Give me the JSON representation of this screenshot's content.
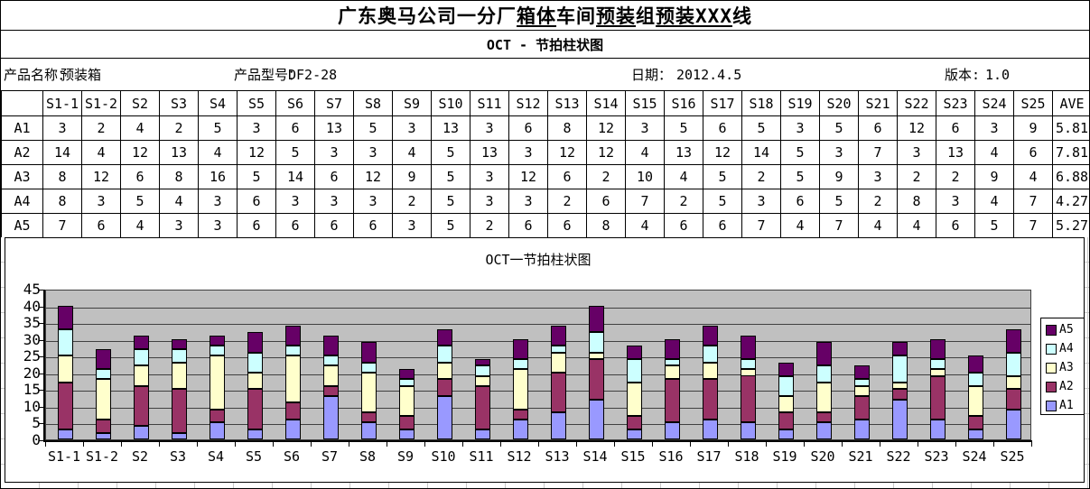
{
  "sheet": {
    "title_parts": [
      {
        "text": "广东奥马公司一分厂",
        "underline": false
      },
      {
        "text": "箱体",
        "underline": true
      },
      {
        "text": "车间",
        "underline": false
      },
      {
        "text": "预装",
        "underline": true
      },
      {
        "text": "组",
        "underline": false
      },
      {
        "text": "预装XXX",
        "underline": true
      },
      {
        "text": "线",
        "underline": false
      }
    ],
    "subtitle": "OCT - 节拍柱状图",
    "info": {
      "product_name_label": "产品名称：",
      "product_name_value": "预装箱",
      "product_model_label": "产品型号：",
      "product_model_value": "DF2-28",
      "date_label": "日期：",
      "date_value": "2012.4.5",
      "version_label": "版本:",
      "version_value": "1.0"
    }
  },
  "table": {
    "columns": [
      "",
      "S1-1",
      "S1-2",
      "S2",
      "S3",
      "S4",
      "S5",
      "S6",
      "S7",
      "S8",
      "S9",
      "S10",
      "S11",
      "S12",
      "S13",
      "S14",
      "S15",
      "S16",
      "S17",
      "S18",
      "S19",
      "S20",
      "S21",
      "S22",
      "S23",
      "S24",
      "S25",
      "AVE"
    ],
    "rows": [
      {
        "label": "A1",
        "values": [
          3,
          2,
          4,
          2,
          5,
          3,
          6,
          13,
          5,
          3,
          13,
          3,
          6,
          8,
          12,
          3,
          5,
          6,
          5,
          3,
          5,
          6,
          12,
          6,
          3,
          9
        ],
        "ave": "5.81"
      },
      {
        "label": "A2",
        "values": [
          14,
          4,
          12,
          13,
          4,
          12,
          5,
          3,
          3,
          4,
          5,
          13,
          3,
          12,
          12,
          4,
          13,
          12,
          14,
          5,
          3,
          7,
          3,
          13,
          4,
          6
        ],
        "ave": "7.81"
      },
      {
        "label": "A3",
        "values": [
          8,
          12,
          6,
          8,
          16,
          5,
          14,
          6,
          12,
          9,
          5,
          3,
          12,
          6,
          2,
          10,
          4,
          5,
          2,
          5,
          9,
          3,
          2,
          2,
          9,
          4
        ],
        "ave": "6.88"
      },
      {
        "label": "A4",
        "values": [
          8,
          3,
          5,
          4,
          3,
          6,
          3,
          3,
          3,
          2,
          5,
          3,
          3,
          2,
          6,
          7,
          2,
          5,
          3,
          6,
          5,
          2,
          8,
          3,
          4,
          7
        ],
        "ave": "4.27"
      },
      {
        "label": "A5",
        "values": [
          7,
          6,
          4,
          3,
          3,
          6,
          6,
          6,
          6,
          3,
          5,
          2,
          6,
          6,
          8,
          4,
          6,
          6,
          7,
          4,
          7,
          4,
          4,
          6,
          5,
          7
        ],
        "ave": "5.27"
      }
    ]
  },
  "chart_data": {
    "type": "bar",
    "stacked": true,
    "title": "OCT一节拍柱状图",
    "categories": [
      "S1-1",
      "S1-2",
      "S2",
      "S3",
      "S4",
      "S5",
      "S6",
      "S7",
      "S8",
      "S9",
      "S10",
      "S11",
      "S12",
      "S13",
      "S14",
      "S15",
      "S16",
      "S17",
      "S18",
      "S19",
      "S20",
      "S21",
      "S22",
      "S23",
      "S24",
      "S25"
    ],
    "series": [
      {
        "name": "A1",
        "color": "#9999FF",
        "values": [
          3,
          2,
          4,
          2,
          5,
          3,
          6,
          13,
          5,
          3,
          13,
          3,
          6,
          8,
          12,
          3,
          5,
          6,
          5,
          3,
          5,
          6,
          12,
          6,
          3,
          9
        ]
      },
      {
        "name": "A2",
        "color": "#993366",
        "values": [
          14,
          4,
          12,
          13,
          4,
          12,
          5,
          3,
          3,
          4,
          5,
          13,
          3,
          12,
          12,
          4,
          13,
          12,
          14,
          5,
          3,
          7,
          3,
          13,
          4,
          6
        ]
      },
      {
        "name": "A3",
        "color": "#FFFFCC",
        "values": [
          8,
          12,
          6,
          8,
          16,
          5,
          14,
          6,
          12,
          9,
          5,
          3,
          12,
          6,
          2,
          10,
          4,
          5,
          2,
          5,
          9,
          3,
          2,
          2,
          9,
          4
        ]
      },
      {
        "name": "A4",
        "color": "#CCFFFF",
        "values": [
          8,
          3,
          5,
          4,
          3,
          6,
          3,
          3,
          3,
          2,
          5,
          3,
          3,
          2,
          6,
          7,
          2,
          5,
          3,
          6,
          5,
          2,
          8,
          3,
          4,
          7
        ]
      },
      {
        "name": "A5",
        "color": "#660066",
        "values": [
          7,
          6,
          4,
          3,
          3,
          6,
          6,
          6,
          6,
          3,
          5,
          2,
          6,
          6,
          8,
          4,
          6,
          6,
          7,
          4,
          7,
          4,
          4,
          6,
          5,
          7
        ]
      }
    ],
    "xlabel": "",
    "ylabel": "",
    "ylim": [
      0,
      45
    ],
    "ytick_step": 5,
    "yticks": [
      0,
      5,
      10,
      15,
      20,
      25,
      30,
      35,
      40,
      45
    ],
    "grid": true,
    "plot_bg": "#C0C0C0",
    "legend_position": "right",
    "legend_order": [
      "A5",
      "A4",
      "A3",
      "A2",
      "A1"
    ]
  }
}
